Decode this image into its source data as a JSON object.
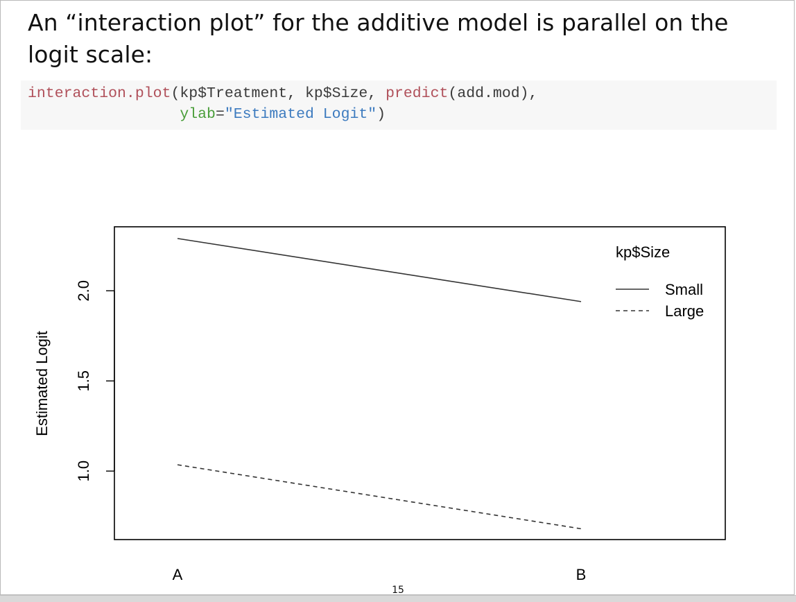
{
  "slide": {
    "text": "An “interaction plot” for the additive model is parallel on the logit scale:",
    "page_number": "15"
  },
  "code": {
    "line1": [
      {
        "cls": "fn",
        "text": "interaction.plot"
      },
      {
        "cls": "plain",
        "text": "(kp$Treatment, kp$Size, "
      },
      {
        "cls": "fn",
        "text": "predict"
      },
      {
        "cls": "plain",
        "text": "(add.mod),"
      }
    ],
    "line2": [
      {
        "cls": "plain",
        "text": "                 "
      },
      {
        "cls": "arg",
        "text": "ylab"
      },
      {
        "cls": "plain",
        "text": "="
      },
      {
        "cls": "str",
        "text": "\"Estimated Logit\""
      },
      {
        "cls": "plain",
        "text": ")"
      }
    ]
  },
  "chart_data": {
    "type": "line",
    "categories": [
      "A",
      "B"
    ],
    "series": [
      {
        "name": "Small",
        "values": [
          2.29,
          1.94
        ],
        "line_style": "solid"
      },
      {
        "name": "Large",
        "values": [
          1.035,
          0.68
        ],
        "line_style": "dashed"
      }
    ],
    "xlabel": "",
    "ylabel": "Estimated Logit",
    "yticks": [
      1.0,
      1.5,
      2.0
    ],
    "ytick_labels": [
      "1.0",
      "1.5",
      "2.0"
    ],
    "ylim": [
      0.62,
      2.355
    ],
    "legend_title": "kp$Size",
    "legend_position": "top-right",
    "grid": false,
    "line_color": "#333333"
  }
}
